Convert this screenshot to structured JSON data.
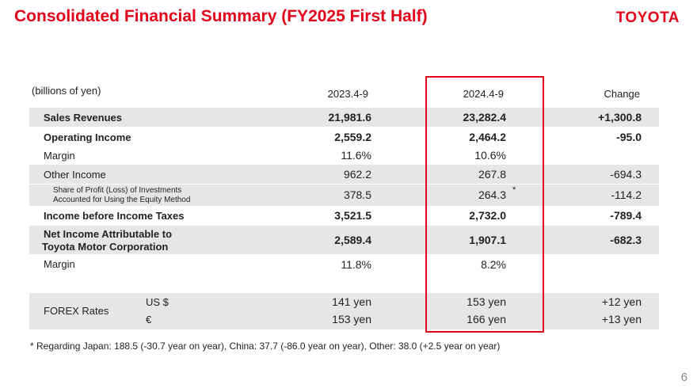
{
  "title": "Consolidated Financial Summary (FY2025 First Half)",
  "logo_text": "TOYOTA",
  "unit_label": "(billions of yen)",
  "columns": [
    "2023.4-9",
    "2024.4-9",
    "Change"
  ],
  "rows": [
    {
      "label": "Sales Revenues",
      "v1": "21,981.6",
      "v2": "23,282.4",
      "v3": "+1,300.8"
    },
    {
      "label": "Operating Income",
      "v1": "2,559.2",
      "v2": "2,464.2",
      "v3": "-95.0"
    },
    {
      "label": "Margin",
      "v1": "11.6%",
      "v2": "10.6%",
      "v3": ""
    },
    {
      "label": "Other Income",
      "v1": "962.2",
      "v2": "267.8",
      "v3": "-694.3"
    },
    {
      "label_line1": "Share of Profit (Loss) of Investments",
      "label_line2": "Accounted for Using the Equity Method",
      "v1": "378.5",
      "v2": "264.3",
      "v2_mark": "*",
      "v3": "-114.2"
    },
    {
      "label": "Income before Income Taxes",
      "v1": "3,521.5",
      "v2": "2,732.0",
      "v3": "-789.4"
    },
    {
      "label_line1": "Net Income Attributable to",
      "label_line2": "Toyota Motor Corporation",
      "v1": "2,589.4",
      "v2": "1,907.1",
      "v3": "-682.3"
    },
    {
      "label": "Margin",
      "v1": "11.8%",
      "v2": "8.2%",
      "v3": ""
    }
  ],
  "forex": {
    "label": "FOREX Rates",
    "usd": {
      "currency": "US $",
      "v1": "141 yen",
      "v2": "153 yen",
      "v3": "+12 yen"
    },
    "eur": {
      "currency": "€",
      "v1": "153 yen",
      "v2": "166 yen",
      "v3": "+13 yen"
    }
  },
  "footnote": "* Regarding Japan: 188.5 (-30.7 year on year), China: 37.7  (-86.0 year on year), Other: 38.0 (+2.5 year on year)",
  "page_number": "6",
  "colors": {
    "brand_red": "#e3001b",
    "row_shade": "#e6e6e6"
  }
}
